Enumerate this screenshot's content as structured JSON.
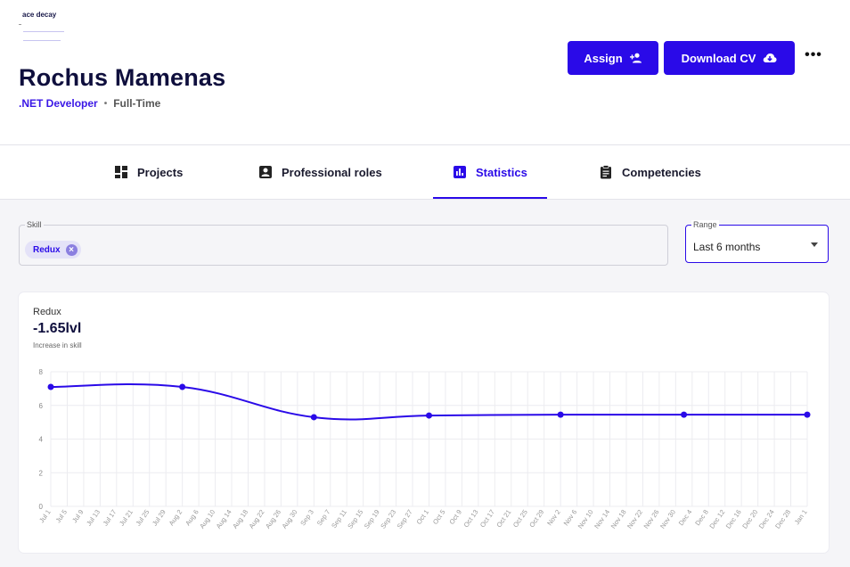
{
  "header": {
    "logo_text": "ace decay",
    "name": "Rochus Mamenas",
    "role": ".NET Developer",
    "separator": "•",
    "employment": "Full-Time",
    "assign_label": "Assign",
    "download_label": "Download CV",
    "more_label": "•••"
  },
  "tabs": [
    {
      "label": "Projects",
      "icon": "dashboard-icon"
    },
    {
      "label": "Professional roles",
      "icon": "badge-icon"
    },
    {
      "label": "Statistics",
      "icon": "bar-chart-icon",
      "active": true
    },
    {
      "label": "Competencies",
      "icon": "clipboard-icon"
    }
  ],
  "filters": {
    "skill_label": "Skill",
    "skill_chip": "Redux",
    "range_label": "Range",
    "range_value": "Last 6 months"
  },
  "card": {
    "skill": "Redux",
    "value": "-1.65lvl",
    "caption": "Increase in skill"
  },
  "colors": {
    "accent": "#2a0ae8"
  },
  "chart_data": {
    "type": "line",
    "ylim": [
      0,
      8
    ],
    "yticks": [
      0,
      2,
      4,
      6,
      8
    ],
    "x": [
      "Jul 1",
      "Jul 5",
      "Jul 9",
      "Jul 13",
      "Jul 17",
      "Jul 21",
      "Jul 25",
      "Jul 29",
      "Aug 2",
      "Aug 6",
      "Aug 10",
      "Aug 14",
      "Aug 18",
      "Aug 22",
      "Aug 26",
      "Aug 30",
      "Sep 3",
      "Sep 7",
      "Sep 11",
      "Sep 15",
      "Sep 19",
      "Sep 23",
      "Sep 27",
      "Oct 1",
      "Oct 5",
      "Oct 9",
      "Oct 13",
      "Oct 17",
      "Oct 21",
      "Oct 25",
      "Oct 29",
      "Nov 2",
      "Nov 6",
      "Nov 10",
      "Nov 14",
      "Nov 18",
      "Nov 22",
      "Nov 26",
      "Nov 30",
      "Dec 4",
      "Dec 8",
      "Dec 12",
      "Dec 16",
      "Dec 20",
      "Dec 24",
      "Dec 28",
      "Jan 1"
    ],
    "points": [
      {
        "x": "Jul 1",
        "y": 7.1
      },
      {
        "x": "Aug 2",
        "y": 7.1
      },
      {
        "x": "Sep 3",
        "y": 5.3
      },
      {
        "x": "Oct 1",
        "y": 5.4
      },
      {
        "x": "Nov 2",
        "y": 5.45
      },
      {
        "x": "Dec 2",
        "y": 5.45
      },
      {
        "x": "Jan 1",
        "y": 5.45
      }
    ],
    "grid": true,
    "color": "#2a0ae8"
  }
}
